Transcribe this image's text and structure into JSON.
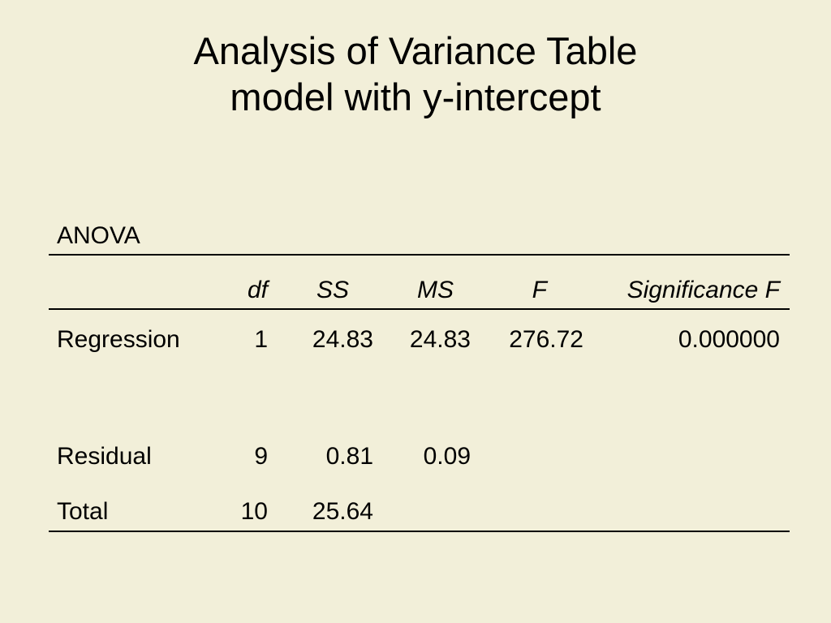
{
  "slide": {
    "title_line1": "Analysis of Variance Table",
    "title_line2": "model with y-intercept"
  },
  "table": {
    "label": "ANOVA",
    "headers": {
      "df": "df",
      "ss": "SS",
      "ms": "MS",
      "f": "F",
      "sig": "Significance F"
    },
    "rows": [
      {
        "name": "Regression",
        "df": "1",
        "ss": "24.83",
        "ms": "24.83",
        "f": "276.72",
        "sig": "0.000000"
      },
      {
        "name": "Residual",
        "df": "9",
        "ss": "0.81",
        "ms": "0.09",
        "f": "",
        "sig": ""
      },
      {
        "name": "Total",
        "df": "10",
        "ss": "25.64",
        "ms": "",
        "f": "",
        "sig": ""
      }
    ]
  },
  "colors": {
    "background": "#f2efd9",
    "text": "#000000"
  }
}
